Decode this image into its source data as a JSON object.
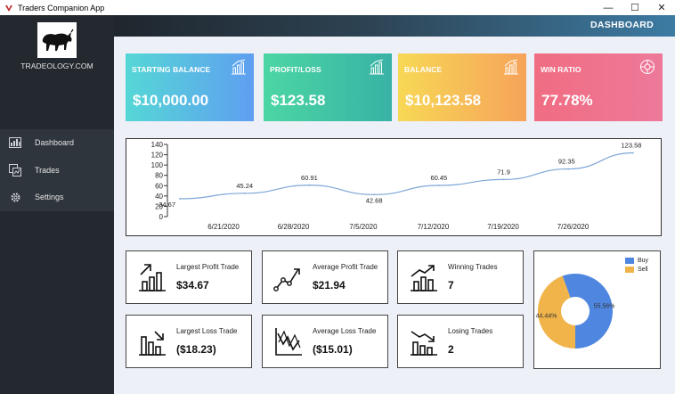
{
  "window": {
    "title": "Traders Companion App",
    "minimize": "—",
    "maximize": "☐",
    "close": "✕"
  },
  "sidebar": {
    "brand": "TRADEOLOGY.COM",
    "items": [
      {
        "label": "Dashboard",
        "icon": "dashboard-icon"
      },
      {
        "label": "Trades",
        "icon": "trades-icon"
      },
      {
        "label": "Settings",
        "icon": "gear-icon"
      }
    ]
  },
  "header": {
    "title": "DASHBOARD"
  },
  "cards": [
    {
      "title": "STARTING BALANCE",
      "value": "$10,000.00",
      "icon": "bar-chart-icon",
      "colors": [
        "#55d7d6",
        "#5f9ff0"
      ]
    },
    {
      "title": "PROFIT/LOSS",
      "value": "$123.58",
      "icon": "bar-chart-icon",
      "colors": [
        "#4cd6a4",
        "#38b2a5"
      ]
    },
    {
      "title": "BALANCE",
      "value": "$10,123.58",
      "icon": "bar-chart-icon",
      "colors": [
        "#f7d855",
        "#f6a35a"
      ]
    },
    {
      "title": "WIN RATIO",
      "value": "77.78%",
      "icon": "pie-chart-icon",
      "colors": [
        "#f06d82",
        "#ee799a"
      ]
    }
  ],
  "stats": [
    {
      "label": "Largest Profit Trade",
      "value": "$34.67",
      "icon": "trend-up-bars-icon"
    },
    {
      "label": "Average Profit Trade",
      "value": "$21.94",
      "icon": "line-trend-icon"
    },
    {
      "label": "Winning Trades",
      "value": "7",
      "icon": "trend-up-bars-icon"
    },
    {
      "label": "Largest Loss Trade",
      "value": "($18.23)",
      "icon": "trend-down-bars-icon"
    },
    {
      "label": "Average Loss Trade",
      "value": "($15.01)",
      "icon": "line-down-icon"
    },
    {
      "label": "Losing Trades",
      "value": "2",
      "icon": "trend-down-bars-icon"
    }
  ],
  "chart_data": [
    {
      "type": "line",
      "x_ticks": [
        "6/21/2020",
        "6/28/2020",
        "7/5/2020",
        "7/12/2020",
        "7/19/2020",
        "7/26/2020"
      ],
      "y_ticks": [
        0,
        20,
        40,
        60,
        80,
        100,
        120,
        140
      ],
      "ylim": [
        0,
        140
      ],
      "series": [
        {
          "values": [
            34.67,
            45.24,
            60.91,
            42.68,
            60.45,
            71.9,
            92.35,
            123.58
          ],
          "labels": [
            "34.67",
            "45.24",
            "60.91",
            "42.68",
            "60.45",
            "71.9",
            "92.35",
            "123.58"
          ]
        }
      ],
      "color": "#7ea6d6"
    },
    {
      "type": "pie",
      "legend": [
        "Buy",
        "Sell"
      ],
      "values": [
        55.56,
        44.44
      ],
      "labels": [
        "55.56%",
        "44.44%"
      ],
      "colors": [
        "#4f86e0",
        "#f0b44a"
      ]
    }
  ]
}
